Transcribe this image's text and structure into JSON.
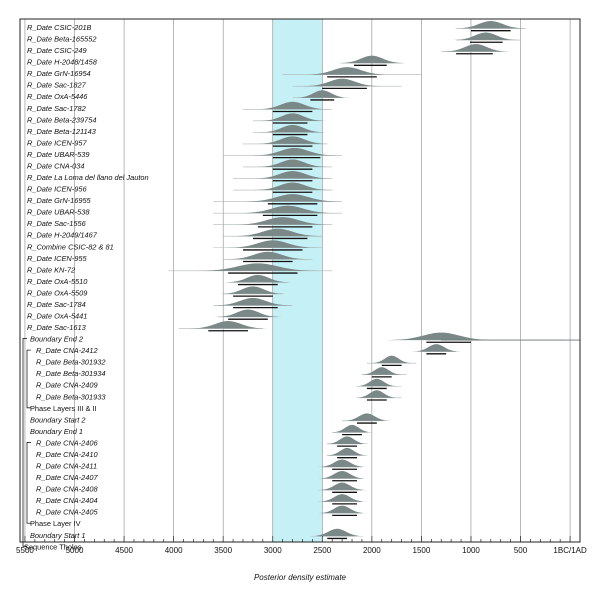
{
  "chart_data": {
    "type": "oxcal-multiplot",
    "xlabel": "Posterior density estimate",
    "x_axis": {
      "min": -5550,
      "max": 100,
      "ticks": [
        {
          "value": -5500,
          "label": "5500"
        },
        {
          "value": -5000,
          "label": "5000"
        },
        {
          "value": -4500,
          "label": "4500"
        },
        {
          "value": -4000,
          "label": "4000"
        },
        {
          "value": -3500,
          "label": "3500"
        },
        {
          "value": -3000,
          "label": "3000"
        },
        {
          "value": -2500,
          "label": "2500"
        },
        {
          "value": -2000,
          "label": "2000"
        },
        {
          "value": -1500,
          "label": "1500"
        },
        {
          "value": -1000,
          "label": "1000"
        },
        {
          "value": -500,
          "label": "500"
        },
        {
          "value": 0,
          "label": "1BC/1AD"
        }
      ]
    },
    "highlight_band": {
      "from": -3000,
      "to": -2500,
      "color": "#c5f0f5"
    },
    "grid": true,
    "colors": {
      "distribution": "#7a8888",
      "band": "#c5f0f5",
      "axis": "#222222"
    },
    "rows": [
      {
        "label": "R_Date CSIC-201B",
        "kind": "date",
        "center": -800,
        "width": 120,
        "likelihood": [
          -1150,
          -450
        ],
        "range": [
          -1000,
          -600
        ],
        "bars": [
          [
            -1000,
            -600
          ]
        ]
      },
      {
        "label": "R_Date Beta-165552",
        "kind": "date",
        "center": -850,
        "width": 110,
        "likelihood": [
          -1150,
          -500
        ],
        "range": [
          -1010,
          -680
        ],
        "bars": [
          [
            -1010,
            -680
          ]
        ]
      },
      {
        "label": "R_Date CSIC-249",
        "kind": "date",
        "center": -950,
        "width": 110,
        "likelihood": [
          -1300,
          -700
        ],
        "range": [
          -1150,
          -780
        ],
        "bars": [
          [
            -1150,
            -780
          ]
        ]
      },
      {
        "label": "R_Date H-2048/1458",
        "kind": "date",
        "center": -2000,
        "width": 110,
        "likelihood": [
          -2300,
          -1700
        ],
        "range": [
          -2180,
          -1850
        ],
        "bars": [
          [
            -2180,
            -1850
          ]
        ]
      },
      {
        "label": "R_Date GrN-16954",
        "kind": "date",
        "center": -2250,
        "width": 140,
        "likelihood": [
          -2900,
          -1500
        ],
        "range": [
          -2450,
          -1950
        ],
        "bars": [
          [
            -2450,
            -1950
          ]
        ]
      },
      {
        "label": "R_Date Sac-1827",
        "kind": "date",
        "center": -2300,
        "width": 130,
        "likelihood": [
          -2800,
          -1700
        ],
        "range": [
          -2500,
          -2050
        ],
        "bars": [
          [
            -2500,
            -2050
          ]
        ]
      },
      {
        "label": "R_Date OxA-5446",
        "kind": "date",
        "center": -2500,
        "width": 90,
        "likelihood": [
          -2800,
          -2300
        ],
        "range": [
          -2620,
          -2380
        ],
        "bars": [
          [
            -2620,
            -2380
          ]
        ]
      },
      {
        "label": "R_Date Sac-1782",
        "kind": "date",
        "center": -2800,
        "width": 120,
        "likelihood": [
          -3300,
          -2400
        ],
        "range": [
          -3000,
          -2600
        ],
        "bars": [
          [
            -3000,
            -2600
          ]
        ]
      },
      {
        "label": "R_Date Beta-239754",
        "kind": "date",
        "center": -2800,
        "width": 110,
        "likelihood": [
          -3200,
          -2500
        ],
        "range": [
          -3000,
          -2650
        ],
        "bars": [
          [
            -3000,
            -2650
          ]
        ]
      },
      {
        "label": "R_Date Beta-121143",
        "kind": "date",
        "center": -2800,
        "width": 110,
        "likelihood": [
          -3200,
          -2500
        ],
        "range": [
          -3000,
          -2650
        ],
        "bars": [
          [
            -3000,
            -2650
          ]
        ]
      },
      {
        "label": "R_Date ICEN-957",
        "kind": "date",
        "center": -2800,
        "width": 120,
        "likelihood": [
          -3300,
          -2450
        ],
        "range": [
          -3000,
          -2600
        ],
        "bars": [
          [
            -3000,
            -2600
          ]
        ]
      },
      {
        "label": "R_Date UBAR-539",
        "kind": "date",
        "center": -2780,
        "width": 140,
        "likelihood": [
          -3500,
          -2300
        ],
        "range": [
          -3000,
          -2520
        ],
        "bars": [
          [
            -3000,
            -2520
          ]
        ]
      },
      {
        "label": "R_Date CNA-034",
        "kind": "date",
        "center": -2800,
        "width": 120,
        "likelihood": [
          -3300,
          -2400
        ],
        "range": [
          -3000,
          -2600
        ],
        "bars": [
          [
            -3000,
            -2600
          ]
        ]
      },
      {
        "label": "R_Date La Loma del llano del Jauton",
        "kind": "date",
        "center": -2800,
        "width": 130,
        "likelihood": [
          -3400,
          -2400
        ],
        "range": [
          -3000,
          -2600
        ],
        "bars": [
          [
            -3000,
            -2600
          ]
        ]
      },
      {
        "label": "R_Date ICEN-956",
        "kind": "date",
        "center": -2800,
        "width": 130,
        "likelihood": [
          -3400,
          -2400
        ],
        "range": [
          -3000,
          -2600
        ],
        "bars": [
          [
            -3000,
            -2600
          ]
        ]
      },
      {
        "label": "R_Date GrN-16955",
        "kind": "date",
        "center": -2800,
        "width": 160,
        "likelihood": [
          -3600,
          -2300
        ],
        "range": [
          -3050,
          -2550
        ],
        "bars": [
          [
            -3050,
            -2550
          ]
        ]
      },
      {
        "label": "R_Date UBAR-538",
        "kind": "date",
        "center": -2850,
        "width": 160,
        "likelihood": [
          -3600,
          -2300
        ],
        "range": [
          -3100,
          -2550
        ],
        "bars": [
          [
            -3100,
            -2550
          ]
        ]
      },
      {
        "label": "R_Date Sac-1556",
        "kind": "date",
        "center": -2900,
        "width": 160,
        "likelihood": [
          -3600,
          -2400
        ],
        "range": [
          -3150,
          -2600
        ],
        "bars": [
          [
            -3150,
            -2600
          ]
        ]
      },
      {
        "label": "R_Date H-2049/1467",
        "kind": "date",
        "center": -2950,
        "width": 150,
        "likelihood": [
          -3500,
          -2500
        ],
        "range": [
          -3200,
          -2650
        ],
        "bars": [
          [
            -3200,
            -2650
          ]
        ]
      },
      {
        "label": "R_Combine CSIC-82 & 81",
        "kind": "date",
        "center": -3000,
        "width": 150,
        "likelihood": [
          -3600,
          -2500
        ],
        "range": [
          -3300,
          -2700
        ],
        "bars": [
          [
            -3300,
            -2700
          ]
        ]
      },
      {
        "label": "R_Date ICEN-955",
        "kind": "date",
        "center": -3050,
        "width": 140,
        "likelihood": [
          -3500,
          -2600
        ],
        "range": [
          -3300,
          -2800
        ],
        "bars": [
          [
            -3300,
            -2800
          ]
        ]
      },
      {
        "label": "R_Date KN-72",
        "kind": "date",
        "center": -3150,
        "width": 200,
        "likelihood": [
          -4050,
          -2400
        ],
        "range": [
          -3450,
          -2750
        ],
        "bars": [
          [
            -3450,
            -2750
          ]
        ]
      },
      {
        "label": "R_Date OxA-5510",
        "kind": "date",
        "center": -3150,
        "width": 110,
        "likelihood": [
          -3450,
          -2850
        ],
        "range": [
          -3350,
          -2950
        ],
        "bars": [
          [
            -3350,
            -2950
          ]
        ]
      },
      {
        "label": "R_Date OxA-5509",
        "kind": "date",
        "center": -3200,
        "width": 110,
        "likelihood": [
          -3500,
          -2900
        ],
        "range": [
          -3400,
          -3000
        ],
        "bars": [
          [
            -3400,
            -3000
          ]
        ]
      },
      {
        "label": "R_Date Sac-1784",
        "kind": "date",
        "center": -3200,
        "width": 130,
        "likelihood": [
          -3600,
          -2800
        ],
        "range": [
          -3400,
          -2950
        ],
        "bars": [
          [
            -3400,
            -2950
          ]
        ]
      },
      {
        "label": "R_Date OxA-5441",
        "kind": "date",
        "center": -3250,
        "width": 110,
        "likelihood": [
          -3550,
          -2950
        ],
        "range": [
          -3450,
          -3050
        ],
        "bars": [
          [
            -3450,
            -3050
          ]
        ]
      },
      {
        "label": "R_Date Sac-1613",
        "kind": "date",
        "center": -3450,
        "width": 130,
        "likelihood": [
          -3950,
          -3100
        ],
        "range": [
          -3650,
          -3250
        ],
        "bars": [
          [
            -3650,
            -3250
          ]
        ]
      },
      {
        "label": "Boundary End 2",
        "kind": "boundary",
        "center": -1300,
        "width": 180,
        "likelihood": [
          -1450,
          -50
        ],
        "range": [
          -1450,
          -1000
        ],
        "bars": [
          [
            -1450,
            -1000
          ]
        ]
      },
      {
        "label": "R_Date CNA-2412",
        "kind": "date",
        "center": -1350,
        "width": 80,
        "likelihood": [
          -1500,
          -1150
        ],
        "range": [
          -1450,
          -1250
        ],
        "bars": [
          [
            -1450,
            -1250
          ]
        ]
      },
      {
        "label": "R_Date Beta-301932",
        "kind": "date",
        "center": -1800,
        "width": 70,
        "likelihood": [
          -2050,
          -1550
        ],
        "range": [
          -1900,
          -1700
        ],
        "bars": [
          [
            -1900,
            -1700
          ]
        ]
      },
      {
        "label": "R_Date Beta-301934",
        "kind": "date",
        "center": -1900,
        "width": 70,
        "likelihood": [
          -2100,
          -1650
        ],
        "range": [
          -2000,
          -1800
        ],
        "bars": [
          [
            -2000,
            -1800
          ]
        ]
      },
      {
        "label": "R_Date CNA-2409",
        "kind": "date",
        "center": -1950,
        "width": 70,
        "likelihood": [
          -2150,
          -1700
        ],
        "range": [
          -2050,
          -1850
        ],
        "bars": [
          [
            -2050,
            -1850
          ]
        ]
      },
      {
        "label": "R_Date Beta-301933",
        "kind": "date",
        "center": -1950,
        "width": 70,
        "likelihood": [
          -2150,
          -1700
        ],
        "range": [
          -2050,
          -1850
        ],
        "bars": [
          [
            -2050,
            -1850
          ]
        ]
      },
      {
        "label": "Phase Layers III & II",
        "kind": "phase"
      },
      {
        "label": "Boundary Start 2",
        "kind": "boundary",
        "center": -2050,
        "width": 80,
        "likelihood": [
          -2300,
          -1900
        ],
        "range": [
          -2150,
          -1950
        ],
        "bars": [
          [
            -2150,
            -1950
          ]
        ]
      },
      {
        "label": "Boundary End 1",
        "kind": "boundary",
        "center": -2200,
        "width": 70,
        "likelihood": [
          -2400,
          -2050
        ],
        "range": [
          -2300,
          -2100
        ],
        "bars": [
          [
            -2300,
            -2100
          ]
        ]
      },
      {
        "label": "R_Date CNA-2406",
        "kind": "date",
        "center": -2250,
        "width": 70,
        "likelihood": [
          -2450,
          -2100
        ],
        "range": [
          -2350,
          -2150
        ],
        "bars": [
          [
            -2350,
            -2150
          ]
        ]
      },
      {
        "label": "R_Date CNA-2410",
        "kind": "date",
        "center": -2250,
        "width": 70,
        "likelihood": [
          -2450,
          -2100
        ],
        "range": [
          -2350,
          -2150
        ],
        "bars": [
          [
            -2350,
            -2150
          ]
        ]
      },
      {
        "label": "R_Date CNA-2411",
        "kind": "date",
        "center": -2300,
        "width": 80,
        "likelihood": [
          -2500,
          -2100
        ],
        "range": [
          -2400,
          -2150
        ],
        "bars": [
          [
            -2400,
            -2150
          ]
        ]
      },
      {
        "label": "R_Date CNA-2407",
        "kind": "date",
        "center": -2300,
        "width": 80,
        "likelihood": [
          -2500,
          -2100
        ],
        "range": [
          -2400,
          -2150
        ],
        "bars": [
          [
            -2400,
            -2150
          ]
        ]
      },
      {
        "label": "R_Date CNA-2408",
        "kind": "date",
        "center": -2300,
        "width": 80,
        "likelihood": [
          -2500,
          -2100
        ],
        "range": [
          -2400,
          -2150
        ],
        "bars": [
          [
            -2400,
            -2150
          ]
        ]
      },
      {
        "label": "R_Date CNA-2404",
        "kind": "date",
        "center": -2300,
        "width": 80,
        "likelihood": [
          -2500,
          -2100
        ],
        "range": [
          -2400,
          -2150
        ],
        "bars": [
          [
            -2400,
            -2150
          ]
        ]
      },
      {
        "label": "R_Date CNA-2405",
        "kind": "date",
        "center": -2300,
        "width": 80,
        "likelihood": [
          -2500,
          -2100
        ],
        "range": [
          -2400,
          -2150
        ],
        "bars": [
          [
            -2400,
            -2150
          ]
        ]
      },
      {
        "label": "Phase Layer IV",
        "kind": "phase"
      },
      {
        "label": "Boundary Start 1",
        "kind": "boundary",
        "center": -2350,
        "width": 90,
        "likelihood": [
          -2550,
          -2150
        ],
        "range": [
          -2450,
          -2250
        ],
        "bars": [
          [
            -2450,
            -2250
          ]
        ]
      },
      {
        "label": "Sequence Tholos",
        "kind": "sequence"
      }
    ]
  }
}
